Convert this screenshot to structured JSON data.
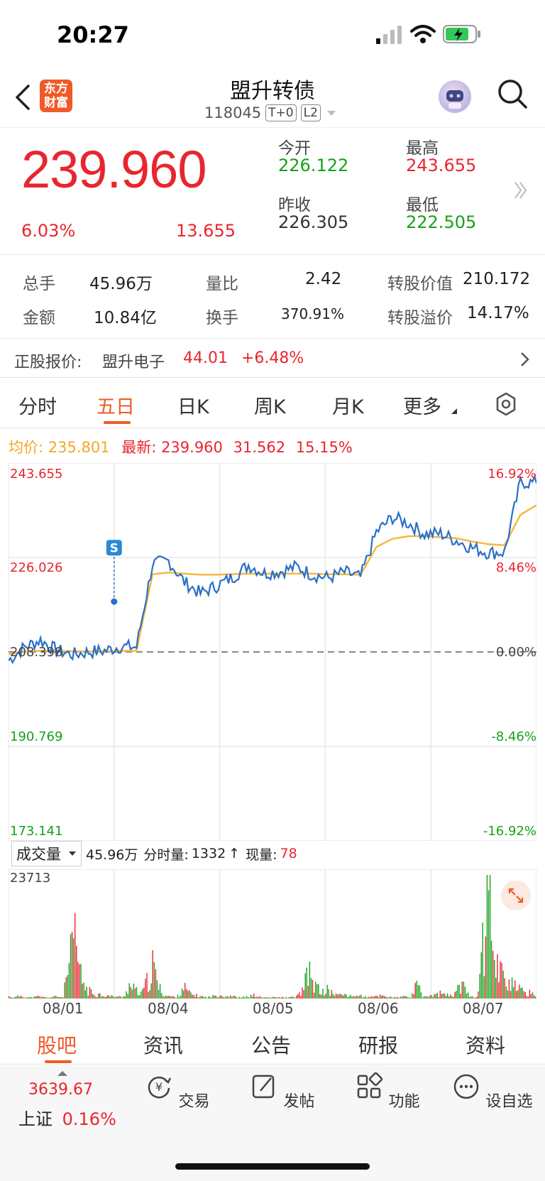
{
  "status": {
    "time": "20:27"
  },
  "header": {
    "app_logo": "东方\n财富",
    "title": "盟升转债",
    "code": "118045",
    "tag1": "T+0",
    "tag2": "L2"
  },
  "quote": {
    "price": "239.960",
    "change_pct": "6.03%",
    "change": "13.655",
    "open_label": "今开",
    "open": "226.122",
    "high_label": "最高",
    "high": "243.655",
    "prev_label": "昨收",
    "prev": "226.305",
    "low_label": "最低",
    "low": "222.505"
  },
  "stats": {
    "volume_label": "总手",
    "volume": "45.96万",
    "ratio_label": "量比",
    "ratio": "2.42",
    "conv_value_label": "转股价值",
    "conv_value": "210.172",
    "amount_label": "金额",
    "amount": "10.84亿",
    "turnover_label": "换手",
    "turnover": "370.91%",
    "premium_label": "转股溢价",
    "premium": "14.17%"
  },
  "stock": {
    "label": "正股报价:",
    "name": "盟升电子",
    "price": "44.01",
    "change": "+6.48%"
  },
  "tabs": [
    "分时",
    "五日",
    "日K",
    "周K",
    "月K",
    "更多"
  ],
  "avg_row": {
    "avg_label": "均价:",
    "avg": "235.801",
    "latest_label": "最新:",
    "latest": "239.960",
    "chg": "31.562",
    "pct": "15.15%"
  },
  "chart_data": {
    "type": "line",
    "y_left_ticks": [
      "243.655",
      "226.026",
      "208.398",
      "190.769",
      "173.141"
    ],
    "y_right_ticks": [
      "16.92%",
      "8.46%",
      "0.00%",
      "-8.46%",
      "-16.92%"
    ],
    "ylim": [
      173.141,
      243.655
    ],
    "baseline": 208.398,
    "days": [
      "08/01",
      "08/04",
      "08/05",
      "08/06",
      "08/07"
    ],
    "marker": "S",
    "series": [
      {
        "name": "",
        "color": "#2a6fc6",
        "values": [
          206.8,
          209.3,
          210.6,
          208.7,
          207.9,
          208.4,
          208.6,
          209.4,
          209.3,
          224.8,
          225.4,
          221.4,
          219.3,
          220.7,
          222.3,
          224.6,
          223.1,
          223.4,
          224.3,
          222.8,
          222.2,
          223.3,
          222.3,
          230.8,
          233.5,
          232.4,
          230.4,
          230.5,
          229.2,
          227.8,
          226.9,
          227.0,
          240.1,
          239.9
        ]
      },
      {
        "name": "",
        "color": "#f5b840",
        "values": [
          208.0,
          208.5,
          208.6,
          208.6,
          208.5,
          208.5,
          208.5,
          208.6,
          208.6,
          222.9,
          223.2,
          223.0,
          222.8,
          222.8,
          222.9,
          223.0,
          223.0,
          223.0,
          223.0,
          223.0,
          222.9,
          222.9,
          222.8,
          228.0,
          229.5,
          230.0,
          230.0,
          229.8,
          229.6,
          229.0,
          228.5,
          228.3,
          234.0,
          235.8
        ]
      }
    ]
  },
  "volume": {
    "selector": "成交量",
    "total": "45.96万",
    "minute_label": "分时量:",
    "minute": "1332",
    "arrow": "↑",
    "now_label": "现量:",
    "now": "78",
    "max": "23713",
    "values": [
      2,
      1,
      3,
      1,
      1,
      2,
      1,
      1,
      2,
      1,
      30,
      55,
      20,
      8,
      5,
      4,
      3,
      2,
      2,
      1,
      12,
      8,
      4,
      15,
      30,
      10,
      3,
      2,
      1,
      12,
      5,
      3,
      2,
      1,
      2,
      4,
      2,
      3,
      1,
      1,
      2,
      3,
      1,
      1,
      1,
      1,
      1,
      1,
      2,
      8,
      25,
      12,
      6,
      8,
      5,
      3,
      4,
      2,
      3,
      2,
      1,
      2,
      3,
      2,
      1,
      1,
      2,
      1,
      12,
      2,
      2,
      3,
      5,
      3,
      2,
      15,
      8,
      3,
      1,
      65,
      100,
      45,
      25,
      20,
      12,
      8,
      6,
      5,
      3
    ]
  },
  "bottom_tabs": [
    "股吧",
    "资讯",
    "公告",
    "研报",
    "资料"
  ],
  "footer": {
    "index_value": "3639.67",
    "index_name": "上证",
    "index_change": "0.16%",
    "items": [
      "交易",
      "发帖",
      "功能",
      "设自选"
    ]
  }
}
